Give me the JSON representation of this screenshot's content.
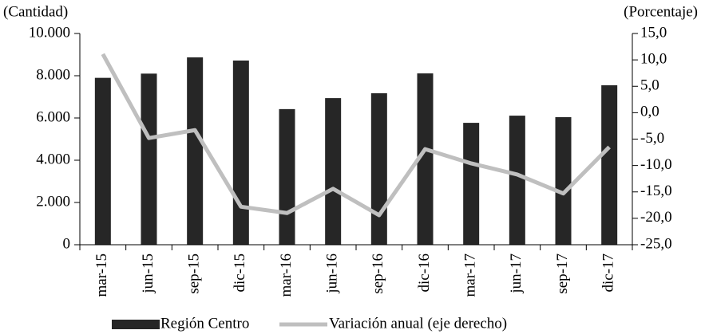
{
  "chart_data": {
    "type": "bar_line",
    "y_label": "(Cantidad)",
    "y2_label": "(Porcentaje)",
    "categories": [
      "mar-15",
      "jun-15",
      "sep-15",
      "dic-15",
      "mar-16",
      "jun-16",
      "sep-16",
      "dic-16",
      "mar-17",
      "jun-17",
      "sep-17",
      "dic-17"
    ],
    "series": [
      {
        "name": "Región Centro",
        "type": "bar",
        "color": "#262626",
        "values": [
          7900,
          8100,
          8870,
          8720,
          6420,
          6940,
          7170,
          8110,
          5770,
          6110,
          6040,
          7550
        ]
      },
      {
        "name": "Variación anual (eje derecho)",
        "type": "line",
        "axis": "y2",
        "color": "#bfbfbf",
        "values": [
          11.1,
          -4.8,
          -3.3,
          -17.8,
          -19.0,
          -14.4,
          -19.4,
          -6.9,
          -9.6,
          -11.7,
          -15.3,
          -6.5
        ]
      }
    ],
    "ylim": [
      0,
      10000
    ],
    "yticks": [
      0,
      {
        "value": 2000,
        "label": "2.000"
      },
      {
        "value": 4000,
        "label": "4.000"
      },
      {
        "value": 6000,
        "label": "6.000"
      },
      {
        "value": 8000,
        "label": "8.000"
      },
      {
        "value": 10000,
        "label": "10.000"
      }
    ],
    "y2lim": [
      -25,
      15
    ],
    "y2ticks": [
      {
        "value": -25,
        "label": "-25,0"
      },
      {
        "value": -20,
        "label": "-20,0"
      },
      {
        "value": -15,
        "label": "-15,0"
      },
      {
        "value": -10,
        "label": "-10,0"
      },
      {
        "value": -5,
        "label": "-5,0"
      },
      {
        "value": 0,
        "label": "0,0"
      },
      {
        "value": 5,
        "label": "5,0"
      },
      {
        "value": 10,
        "label": "10,0"
      },
      {
        "value": 15,
        "label": "15,0"
      }
    ]
  }
}
